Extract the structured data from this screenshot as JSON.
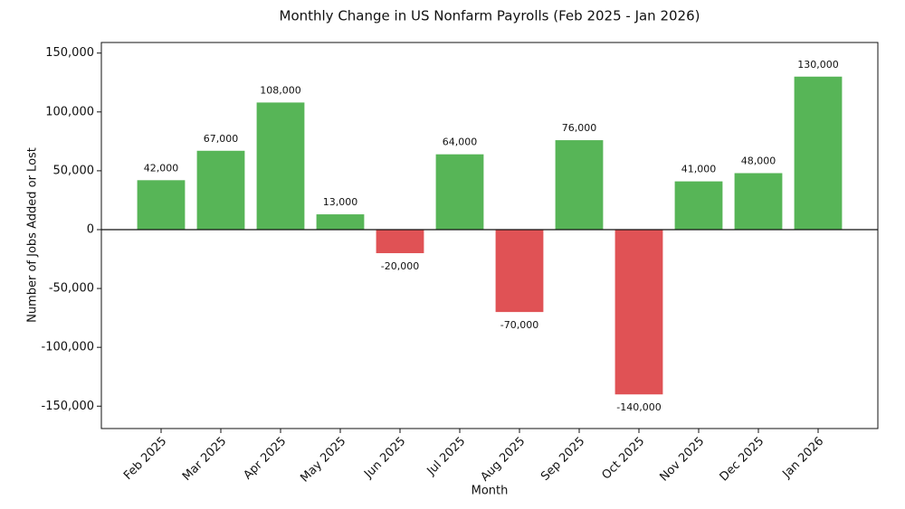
{
  "chart_data": {
    "type": "bar",
    "title": "Monthly Change in US Nonfarm Payrolls (Feb 2025 - Jan 2026)",
    "x_label": "Month",
    "y_label": "Number of Jobs Added or Lost",
    "categories": [
      "Feb 2025",
      "Mar 2025",
      "Apr 2025",
      "May 2025",
      "Jun 2025",
      "Jul 2025",
      "Aug 2025",
      "Sep 2025",
      "Oct 2025",
      "Nov 2025",
      "Dec 2025",
      "Jan 2026"
    ],
    "values": [
      42000,
      67000,
      108000,
      13000,
      -20000,
      64000,
      -70000,
      76000,
      -140000,
      41000,
      48000,
      130000
    ],
    "value_labels": [
      "42,000",
      "67,000",
      "108,000",
      "13,000",
      "-20,000",
      "64,000",
      "-70,000",
      "76,000",
      "-140,000",
      "41,000",
      "48,000",
      "130,000"
    ],
    "colors": [
      "#57b557",
      "#57b557",
      "#57b557",
      "#57b557",
      "#e05255",
      "#57b557",
      "#e05255",
      "#57b557",
      "#e05255",
      "#57b557",
      "#57b557",
      "#57b557"
    ],
    "ylim": [
      -169000,
      159000
    ],
    "yticks": [
      {
        "value": -150000,
        "label": "-150,000"
      },
      {
        "value": -100000,
        "label": "-100,000"
      },
      {
        "value": -50000,
        "label": "-50,000"
      },
      0,
      {
        "value": 50000,
        "label": "50,000"
      },
      {
        "value": 100000,
        "label": "100,000"
      },
      {
        "value": 150000,
        "label": "150,000"
      }
    ],
    "grid": false,
    "zero_line": true
  }
}
